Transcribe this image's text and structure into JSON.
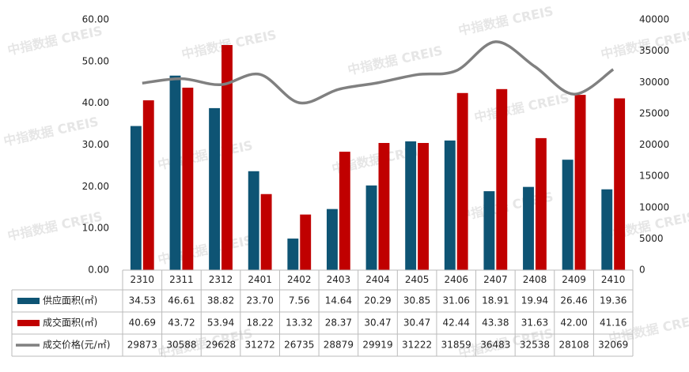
{
  "chart_data": {
    "type": "bar-line-table",
    "watermark": "中指数据 CREIS",
    "categories": [
      "2310",
      "2311",
      "2312",
      "2401",
      "2402",
      "2403",
      "2404",
      "2405",
      "2406",
      "2407",
      "2408",
      "2409",
      "2410"
    ],
    "series": [
      {
        "name": "供应面积(㎡)",
        "color": "#0e5474",
        "type": "bar",
        "values": [
          34.53,
          46.61,
          38.82,
          23.7,
          7.56,
          14.64,
          20.29,
          30.85,
          31.06,
          18.91,
          19.94,
          26.46,
          19.36
        ],
        "value_labels": [
          "34.53",
          "46.61",
          "38.82",
          "23.70",
          "7.56",
          "14.64",
          "20.29",
          "30.85",
          "31.06",
          "18.91",
          "19.94",
          "26.46",
          "19.36"
        ]
      },
      {
        "name": "成交面积(㎡)",
        "color": "#c00000",
        "type": "bar",
        "values": [
          40.69,
          43.72,
          53.94,
          18.22,
          13.32,
          28.37,
          30.47,
          30.47,
          42.44,
          43.38,
          31.63,
          42.0,
          41.16
        ],
        "value_labels": [
          "40.69",
          "43.72",
          "53.94",
          "18.22",
          "13.32",
          "28.37",
          "30.47",
          "30.47",
          "42.44",
          "43.38",
          "31.63",
          "42.00",
          "41.16"
        ]
      },
      {
        "name": "成交价格(元/㎡)",
        "color": "#808080",
        "type": "line",
        "axis": "y2",
        "values": [
          29873,
          30588,
          29628,
          31272,
          26735,
          28879,
          29919,
          31222,
          31859,
          36483,
          32538,
          28108,
          32069
        ]
      }
    ],
    "ylim": [
      0,
      60
    ],
    "yticks": [
      {
        "value": 0,
        "label": "0.00"
      },
      {
        "value": 10,
        "label": "10.00"
      },
      {
        "value": 20,
        "label": "20.00"
      },
      {
        "value": 30,
        "label": "30.00"
      },
      {
        "value": 40,
        "label": "40.00"
      },
      {
        "value": 50,
        "label": "50.00"
      },
      {
        "value": 60,
        "label": "60.00"
      }
    ],
    "y2lim": [
      0,
      40000
    ],
    "y2ticks": [
      0,
      5000,
      10000,
      15000,
      20000,
      25000,
      30000,
      35000,
      40000
    ]
  }
}
